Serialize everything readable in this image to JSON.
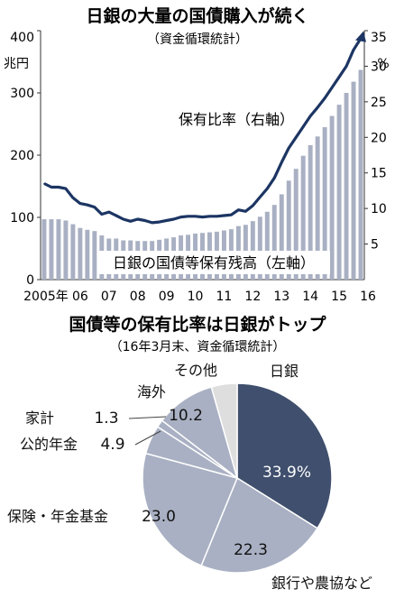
{
  "chart_data": [
    {
      "type": "bar+line",
      "title": "日銀の大量の国債購入が続く",
      "subtitle": "（資金循環統計）",
      "ylabel_left": "兆円",
      "ylabel_right": "%",
      "ylim_left": [
        0,
        400
      ],
      "ylim_right": [
        0,
        35
      ],
      "yticks_left": [
        "0",
        "100",
        "200",
        "300",
        "400"
      ],
      "yticks_right": [
        "5",
        "10",
        "15",
        "20",
        "25",
        "30",
        "35"
      ],
      "xtick_labels": [
        "2005年",
        "06",
        "07",
        "08",
        "09",
        "10",
        "11",
        "12",
        "13",
        "14",
        "15",
        "16"
      ],
      "grid": false,
      "series": [
        {
          "name": "日銀の国債等保有残高（左軸）",
          "kind": "bar",
          "axis": "left",
          "color": "#a9b0c3",
          "quarters": [
            "2005Q1",
            "2005Q2",
            "2005Q3",
            "2005Q4",
            "2006Q1",
            "2006Q2",
            "2006Q3",
            "2006Q4",
            "2007Q1",
            "2007Q2",
            "2007Q3",
            "2007Q4",
            "2008Q1",
            "2008Q2",
            "2008Q3",
            "2008Q4",
            "2009Q1",
            "2009Q2",
            "2009Q3",
            "2009Q4",
            "2010Q1",
            "2010Q2",
            "2010Q3",
            "2010Q4",
            "2011Q1",
            "2011Q2",
            "2011Q3",
            "2011Q4",
            "2012Q1",
            "2012Q2",
            "2012Q3",
            "2012Q4",
            "2013Q1",
            "2013Q2",
            "2013Q3",
            "2013Q4",
            "2014Q1",
            "2014Q2",
            "2014Q3",
            "2014Q4",
            "2015Q1",
            "2015Q2",
            "2015Q3",
            "2015Q4",
            "2016Q1"
          ],
          "values": [
            97,
            97,
            97,
            95,
            89,
            83,
            80,
            78,
            71,
            66,
            66,
            63,
            63,
            62,
            62,
            62,
            64,
            66,
            68,
            71,
            72,
            74,
            75,
            76,
            77,
            79,
            81,
            86,
            88,
            94,
            101,
            109,
            120,
            137,
            159,
            178,
            199,
            216,
            230,
            245,
            263,
            281,
            300,
            318,
            337
          ]
        },
        {
          "name": "保有比率（右軸）",
          "kind": "line",
          "axis": "right",
          "color": "#1c3563",
          "quarters": [
            "2005Q1",
            "2005Q2",
            "2005Q3",
            "2005Q4",
            "2006Q1",
            "2006Q2",
            "2006Q3",
            "2006Q4",
            "2007Q1",
            "2007Q2",
            "2007Q3",
            "2007Q4",
            "2008Q1",
            "2008Q2",
            "2008Q3",
            "2008Q4",
            "2009Q1",
            "2009Q2",
            "2009Q3",
            "2009Q4",
            "2010Q1",
            "2010Q2",
            "2010Q3",
            "2010Q4",
            "2011Q1",
            "2011Q2",
            "2011Q3",
            "2011Q4",
            "2012Q1",
            "2012Q2",
            "2012Q3",
            "2012Q4",
            "2013Q1",
            "2013Q2",
            "2013Q3",
            "2013Q4",
            "2014Q1",
            "2014Q2",
            "2014Q3",
            "2014Q4",
            "2015Q1",
            "2015Q2",
            "2015Q3",
            "2015Q4",
            "2016Q1"
          ],
          "values": [
            13.5,
            13.0,
            13.0,
            12.8,
            11.5,
            10.7,
            10.5,
            10.2,
            9.2,
            9.5,
            9.0,
            8.5,
            8.2,
            8.5,
            8.3,
            8.0,
            8.1,
            8.3,
            8.5,
            8.8,
            8.9,
            8.9,
            8.8,
            8.9,
            8.9,
            9.0,
            9.1,
            9.8,
            9.6,
            10.4,
            11.6,
            12.8,
            14.3,
            16.5,
            18.5,
            20.0,
            21.5,
            23.0,
            24.2,
            25.5,
            27.0,
            28.5,
            30.0,
            32.3,
            33.9
          ]
        }
      ]
    },
    {
      "type": "pie",
      "title": "国債等の保有比率は日銀がトップ",
      "subtitle": "（16年3月末、資金循環統計）",
      "slices": [
        {
          "label": "日銀",
          "value": 33.9,
          "value_label": "33.9%",
          "color": "#3f4f6d"
        },
        {
          "label": "銀行や農協など",
          "value": 22.3,
          "value_label": "22.3",
          "color": "#a9b0c3"
        },
        {
          "label": "保険・年金基金",
          "value": 23.0,
          "value_label": "23.0",
          "color": "#a9b0c3"
        },
        {
          "label": "公的年金",
          "value": 4.9,
          "value_label": "4.9",
          "color": "#a9b0c3"
        },
        {
          "label": "家計",
          "value": 1.3,
          "value_label": "1.3",
          "color": "#a9b0c3"
        },
        {
          "label": "海外",
          "value": 10.2,
          "value_label": "10.2",
          "color": "#a9b0c3"
        },
        {
          "label": "その他",
          "value": 4.4,
          "value_label": "",
          "color": "#dedede"
        }
      ]
    }
  ]
}
